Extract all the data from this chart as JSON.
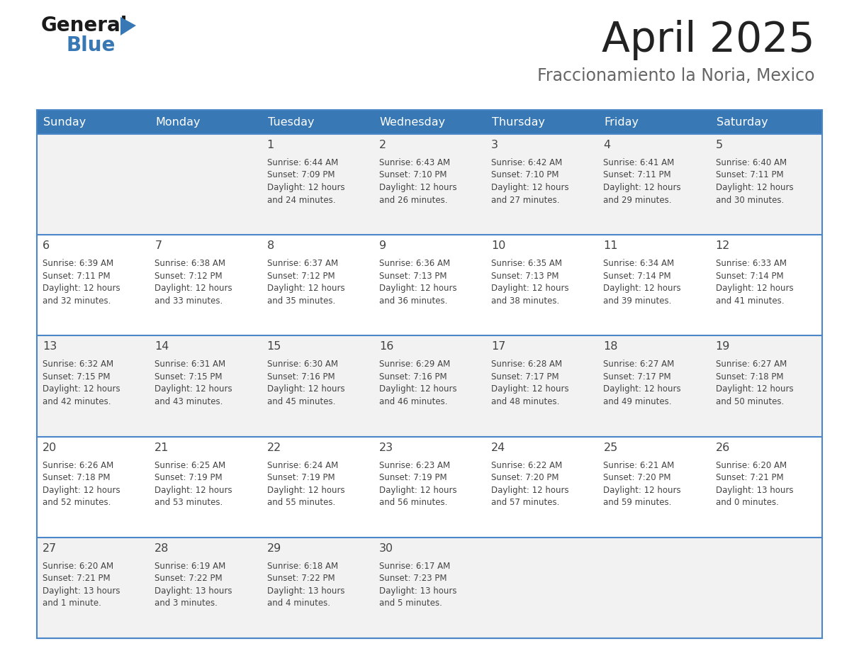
{
  "title": "April 2025",
  "subtitle": "Fraccionamiento la Noria, Mexico",
  "header_bg_color": "#3878b4",
  "header_text_color": "#ffffff",
  "day_headers": [
    "Sunday",
    "Monday",
    "Tuesday",
    "Wednesday",
    "Thursday",
    "Friday",
    "Saturday"
  ],
  "row_bg_colors": [
    "#f2f2f2",
    "#ffffff",
    "#f2f2f2",
    "#ffffff",
    "#f2f2f2"
  ],
  "divider_color": "#4a86c8",
  "text_color": "#444444",
  "title_color": "#222222",
  "subtitle_color": "#666666",
  "calendar_data": [
    [
      {
        "day": "",
        "lines": []
      },
      {
        "day": "",
        "lines": []
      },
      {
        "day": "1",
        "lines": [
          "Sunrise: 6:44 AM",
          "Sunset: 7:09 PM",
          "Daylight: 12 hours",
          "and 24 minutes."
        ]
      },
      {
        "day": "2",
        "lines": [
          "Sunrise: 6:43 AM",
          "Sunset: 7:10 PM",
          "Daylight: 12 hours",
          "and 26 minutes."
        ]
      },
      {
        "day": "3",
        "lines": [
          "Sunrise: 6:42 AM",
          "Sunset: 7:10 PM",
          "Daylight: 12 hours",
          "and 27 minutes."
        ]
      },
      {
        "day": "4",
        "lines": [
          "Sunrise: 6:41 AM",
          "Sunset: 7:11 PM",
          "Daylight: 12 hours",
          "and 29 minutes."
        ]
      },
      {
        "day": "5",
        "lines": [
          "Sunrise: 6:40 AM",
          "Sunset: 7:11 PM",
          "Daylight: 12 hours",
          "and 30 minutes."
        ]
      }
    ],
    [
      {
        "day": "6",
        "lines": [
          "Sunrise: 6:39 AM",
          "Sunset: 7:11 PM",
          "Daylight: 12 hours",
          "and 32 minutes."
        ]
      },
      {
        "day": "7",
        "lines": [
          "Sunrise: 6:38 AM",
          "Sunset: 7:12 PM",
          "Daylight: 12 hours",
          "and 33 minutes."
        ]
      },
      {
        "day": "8",
        "lines": [
          "Sunrise: 6:37 AM",
          "Sunset: 7:12 PM",
          "Daylight: 12 hours",
          "and 35 minutes."
        ]
      },
      {
        "day": "9",
        "lines": [
          "Sunrise: 6:36 AM",
          "Sunset: 7:13 PM",
          "Daylight: 12 hours",
          "and 36 minutes."
        ]
      },
      {
        "day": "10",
        "lines": [
          "Sunrise: 6:35 AM",
          "Sunset: 7:13 PM",
          "Daylight: 12 hours",
          "and 38 minutes."
        ]
      },
      {
        "day": "11",
        "lines": [
          "Sunrise: 6:34 AM",
          "Sunset: 7:14 PM",
          "Daylight: 12 hours",
          "and 39 minutes."
        ]
      },
      {
        "day": "12",
        "lines": [
          "Sunrise: 6:33 AM",
          "Sunset: 7:14 PM",
          "Daylight: 12 hours",
          "and 41 minutes."
        ]
      }
    ],
    [
      {
        "day": "13",
        "lines": [
          "Sunrise: 6:32 AM",
          "Sunset: 7:15 PM",
          "Daylight: 12 hours",
          "and 42 minutes."
        ]
      },
      {
        "day": "14",
        "lines": [
          "Sunrise: 6:31 AM",
          "Sunset: 7:15 PM",
          "Daylight: 12 hours",
          "and 43 minutes."
        ]
      },
      {
        "day": "15",
        "lines": [
          "Sunrise: 6:30 AM",
          "Sunset: 7:16 PM",
          "Daylight: 12 hours",
          "and 45 minutes."
        ]
      },
      {
        "day": "16",
        "lines": [
          "Sunrise: 6:29 AM",
          "Sunset: 7:16 PM",
          "Daylight: 12 hours",
          "and 46 minutes."
        ]
      },
      {
        "day": "17",
        "lines": [
          "Sunrise: 6:28 AM",
          "Sunset: 7:17 PM",
          "Daylight: 12 hours",
          "and 48 minutes."
        ]
      },
      {
        "day": "18",
        "lines": [
          "Sunrise: 6:27 AM",
          "Sunset: 7:17 PM",
          "Daylight: 12 hours",
          "and 49 minutes."
        ]
      },
      {
        "day": "19",
        "lines": [
          "Sunrise: 6:27 AM",
          "Sunset: 7:18 PM",
          "Daylight: 12 hours",
          "and 50 minutes."
        ]
      }
    ],
    [
      {
        "day": "20",
        "lines": [
          "Sunrise: 6:26 AM",
          "Sunset: 7:18 PM",
          "Daylight: 12 hours",
          "and 52 minutes."
        ]
      },
      {
        "day": "21",
        "lines": [
          "Sunrise: 6:25 AM",
          "Sunset: 7:19 PM",
          "Daylight: 12 hours",
          "and 53 minutes."
        ]
      },
      {
        "day": "22",
        "lines": [
          "Sunrise: 6:24 AM",
          "Sunset: 7:19 PM",
          "Daylight: 12 hours",
          "and 55 minutes."
        ]
      },
      {
        "day": "23",
        "lines": [
          "Sunrise: 6:23 AM",
          "Sunset: 7:19 PM",
          "Daylight: 12 hours",
          "and 56 minutes."
        ]
      },
      {
        "day": "24",
        "lines": [
          "Sunrise: 6:22 AM",
          "Sunset: 7:20 PM",
          "Daylight: 12 hours",
          "and 57 minutes."
        ]
      },
      {
        "day": "25",
        "lines": [
          "Sunrise: 6:21 AM",
          "Sunset: 7:20 PM",
          "Daylight: 12 hours",
          "and 59 minutes."
        ]
      },
      {
        "day": "26",
        "lines": [
          "Sunrise: 6:20 AM",
          "Sunset: 7:21 PM",
          "Daylight: 13 hours",
          "and 0 minutes."
        ]
      }
    ],
    [
      {
        "day": "27",
        "lines": [
          "Sunrise: 6:20 AM",
          "Sunset: 7:21 PM",
          "Daylight: 13 hours",
          "and 1 minute."
        ]
      },
      {
        "day": "28",
        "lines": [
          "Sunrise: 6:19 AM",
          "Sunset: 7:22 PM",
          "Daylight: 13 hours",
          "and 3 minutes."
        ]
      },
      {
        "day": "29",
        "lines": [
          "Sunrise: 6:18 AM",
          "Sunset: 7:22 PM",
          "Daylight: 13 hours",
          "and 4 minutes."
        ]
      },
      {
        "day": "30",
        "lines": [
          "Sunrise: 6:17 AM",
          "Sunset: 7:23 PM",
          "Daylight: 13 hours",
          "and 5 minutes."
        ]
      },
      {
        "day": "",
        "lines": []
      },
      {
        "day": "",
        "lines": []
      },
      {
        "day": "",
        "lines": []
      }
    ]
  ]
}
